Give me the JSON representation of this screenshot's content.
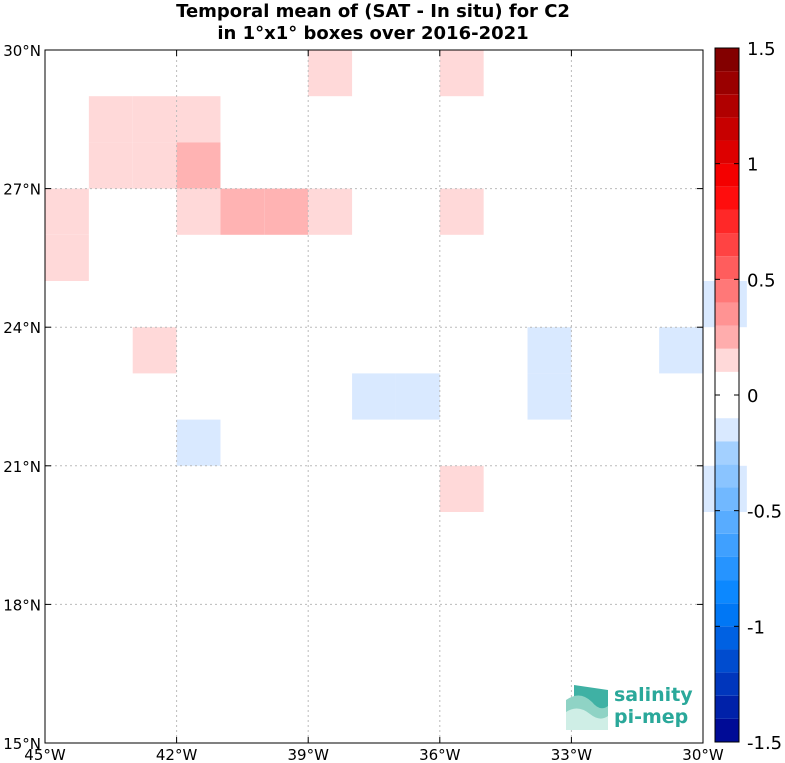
{
  "chart_data": {
    "type": "heatmap",
    "title": "Temporal mean of (SAT - In situ) for C2",
    "subtitle": "in 1°x1° boxes over 2016-2021",
    "x_ticks": [
      -45,
      -42,
      -39,
      -36,
      -33,
      -30
    ],
    "y_ticks": [
      15,
      18,
      21,
      24,
      27,
      30
    ],
    "x_tick_labels": [
      "45°W",
      "42°W",
      "39°W",
      "36°W",
      "33°W",
      "30°W"
    ],
    "y_tick_labels": [
      "15°N",
      "18°N",
      "21°N",
      "24°N",
      "27°N",
      "30°N"
    ],
    "xlim": [
      -45,
      -30
    ],
    "ylim": [
      15,
      30
    ],
    "grid": true,
    "colorbar": {
      "range": [
        -1.5,
        1.5
      ],
      "levels": 30,
      "ticks": [
        1.5,
        1,
        0.5,
        0,
        -0.5,
        -1,
        -1.5
      ],
      "tick_labels": [
        "1.5",
        "1",
        "0.5",
        "0",
        "-0.5",
        "-1",
        "-1.5"
      ]
    },
    "cells": [
      {
        "lon": -39,
        "lat": 29,
        "value": 0.15
      },
      {
        "lon": -36,
        "lat": 29,
        "value": 0.15
      },
      {
        "lon": -44,
        "lat": 28,
        "value": 0.15
      },
      {
        "lon": -43,
        "lat": 28,
        "value": 0.15
      },
      {
        "lon": -42,
        "lat": 28,
        "value": 0.15
      },
      {
        "lon": -44,
        "lat": 27,
        "value": 0.15
      },
      {
        "lon": -43,
        "lat": 27,
        "value": 0.15
      },
      {
        "lon": -42,
        "lat": 27,
        "value": 0.25
      },
      {
        "lon": -45,
        "lat": 26,
        "value": 0.15
      },
      {
        "lon": -42,
        "lat": 26,
        "value": 0.15
      },
      {
        "lon": -41,
        "lat": 26,
        "value": 0.25
      },
      {
        "lon": -40,
        "lat": 26,
        "value": 0.25
      },
      {
        "lon": -39,
        "lat": 26,
        "value": 0.15
      },
      {
        "lon": -36,
        "lat": 26,
        "value": 0.15
      },
      {
        "lon": -45,
        "lat": 25,
        "value": 0.15
      },
      {
        "lon": -30,
        "lat": 24,
        "value": -0.15
      },
      {
        "lon": -43,
        "lat": 23,
        "value": 0.15
      },
      {
        "lon": -34,
        "lat": 23,
        "value": -0.15
      },
      {
        "lon": -31,
        "lat": 23,
        "value": -0.15
      },
      {
        "lon": -34,
        "lat": 22,
        "value": -0.15
      },
      {
        "lon": -38,
        "lat": 22,
        "value": -0.15
      },
      {
        "lon": -37,
        "lat": 22,
        "value": -0.15
      },
      {
        "lon": -42,
        "lat": 21,
        "value": -0.15
      },
      {
        "lon": -36,
        "lat": 20,
        "value": 0.15
      },
      {
        "lon": -30,
        "lat": 20,
        "value": -0.15
      }
    ]
  },
  "logo": {
    "line1": "salinity",
    "line2": "pi-mep",
    "color": "#2aa89a"
  }
}
